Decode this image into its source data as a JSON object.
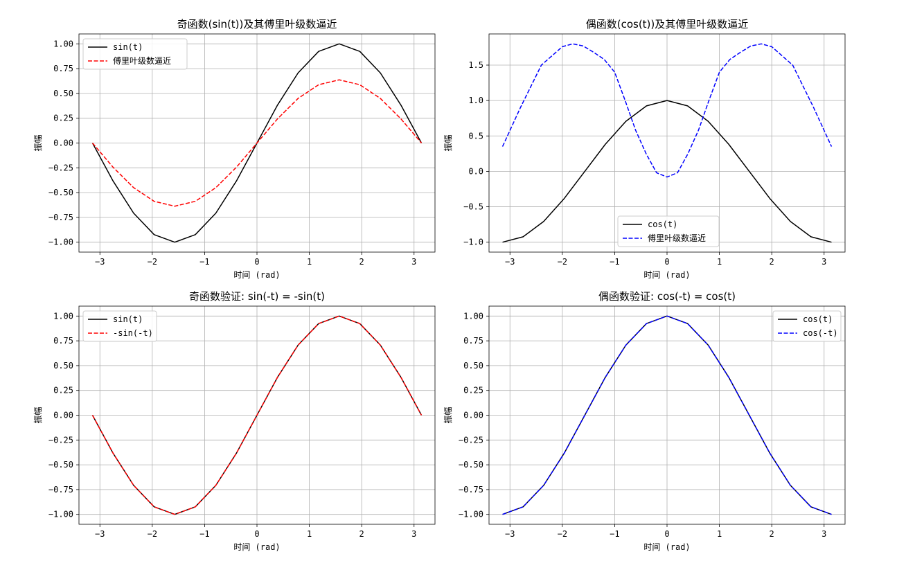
{
  "xlabel": "时间 (rad)",
  "ylabel": "振幅",
  "chart_data": [
    {
      "type": "line",
      "title": "奇函数(sin(t))及其傅里叶级数逼近",
      "xlabel": "时间 (rad)",
      "ylabel": "振幅",
      "xlim": [
        -3.4,
        3.4
      ],
      "ylim": [
        -1.1,
        1.1
      ],
      "xticks": [
        -3,
        -2,
        -1,
        0,
        1,
        2,
        3
      ],
      "yticks": [
        -1.0,
        -0.75,
        -0.5,
        -0.25,
        0.0,
        0.25,
        0.5,
        0.75,
        1.0
      ],
      "ytick_labels": [
        "−1.00",
        "−0.75",
        "−0.50",
        "−0.25",
        "0.00",
        "0.25",
        "0.50",
        "0.75",
        "1.00"
      ],
      "xtick_labels": [
        "−3",
        "−2",
        "−1",
        "0",
        "1",
        "2",
        "3"
      ],
      "grid": true,
      "legend_position": "upper-left",
      "series": [
        {
          "name": "sin(t)",
          "color": "#000000",
          "style": "solid",
          "x": [
            -3.1416,
            -2.7489,
            -2.3562,
            -1.9635,
            -1.5708,
            -1.1781,
            -0.7854,
            -0.3927,
            0,
            0.3927,
            0.7854,
            1.1781,
            1.5708,
            1.9635,
            2.3562,
            2.7489,
            3.1416
          ],
          "y": [
            0,
            -0.383,
            -0.707,
            -0.924,
            -1,
            -0.924,
            -0.707,
            -0.383,
            0,
            0.383,
            0.707,
            0.924,
            1,
            0.924,
            0.707,
            0.383,
            0
          ]
        },
        {
          "name": "傅里叶级数逼近",
          "color": "#ff0000",
          "style": "dashed",
          "x": [
            -3.1416,
            -2.7489,
            -2.3562,
            -1.9635,
            -1.5708,
            -1.1781,
            -0.7854,
            -0.3927,
            0,
            0.3927,
            0.7854,
            1.1781,
            1.5708,
            1.9635,
            2.3562,
            2.7489,
            3.1416
          ],
          "y": [
            0,
            -0.244,
            -0.45,
            -0.588,
            -0.637,
            -0.588,
            -0.45,
            -0.244,
            0,
            0.244,
            0.45,
            0.588,
            0.637,
            0.588,
            0.45,
            0.244,
            0
          ]
        }
      ]
    },
    {
      "type": "line",
      "title": "偶函数(cos(t))及其傅里叶级数逼近",
      "xlabel": "时间 (rad)",
      "ylabel": "振幅",
      "xlim": [
        -3.4,
        3.4
      ],
      "ylim": [
        -1.14,
        1.94
      ],
      "xticks": [
        -3,
        -2,
        -1,
        0,
        1,
        2,
        3
      ],
      "yticks": [
        -1.0,
        -0.5,
        0.0,
        0.5,
        1.0,
        1.5
      ],
      "ytick_labels": [
        "−1.0",
        "−0.5",
        "0.0",
        "0.5",
        "1.0",
        "1.5"
      ],
      "xtick_labels": [
        "−3",
        "−2",
        "−1",
        "0",
        "1",
        "2",
        "3"
      ],
      "grid": true,
      "legend_position": "lower-center",
      "series": [
        {
          "name": "cos(t)",
          "color": "#000000",
          "style": "solid",
          "x": [
            -3.1416,
            -2.7489,
            -2.3562,
            -1.9635,
            -1.5708,
            -1.1781,
            -0.7854,
            -0.3927,
            0,
            0.3927,
            0.7854,
            1.1781,
            1.5708,
            1.9635,
            2.3562,
            2.7489,
            3.1416
          ],
          "y": [
            -1,
            -0.924,
            -0.707,
            -0.383,
            0,
            0.383,
            0.707,
            0.924,
            1,
            0.924,
            0.707,
            0.383,
            0,
            -0.383,
            -0.707,
            -0.924,
            -1
          ]
        },
        {
          "name": "傅里叶级数逼近",
          "color": "#0000ff",
          "style": "dashed",
          "x": [
            -3.1416,
            -2.8,
            -2.4,
            -2.0,
            -1.8,
            -1.6,
            -1.4,
            -1.2,
            -1.0,
            -0.8,
            -0.6,
            -0.4,
            -0.2,
            0,
            0.2,
            0.4,
            0.6,
            0.8,
            1.0,
            1.2,
            1.4,
            1.6,
            1.8,
            2.0,
            2.4,
            2.8,
            3.1416
          ],
          "y": [
            0.35,
            0.9,
            1.5,
            1.76,
            1.8,
            1.77,
            1.68,
            1.58,
            1.4,
            1.0,
            0.58,
            0.25,
            -0.02,
            -0.08,
            -0.02,
            0.25,
            0.58,
            1.0,
            1.4,
            1.58,
            1.68,
            1.77,
            1.8,
            1.76,
            1.5,
            0.9,
            0.35
          ]
        }
      ]
    },
    {
      "type": "line",
      "title": "奇函数验证: sin(-t) = -sin(t)",
      "xlabel": "时间 (rad)",
      "ylabel": "振幅",
      "xlim": [
        -3.4,
        3.4
      ],
      "ylim": [
        -1.1,
        1.1
      ],
      "xticks": [
        -3,
        -2,
        -1,
        0,
        1,
        2,
        3
      ],
      "yticks": [
        -1.0,
        -0.75,
        -0.5,
        -0.25,
        0.0,
        0.25,
        0.5,
        0.75,
        1.0
      ],
      "ytick_labels": [
        "−1.00",
        "−0.75",
        "−0.50",
        "−0.25",
        "0.00",
        "0.25",
        "0.50",
        "0.75",
        "1.00"
      ],
      "xtick_labels": [
        "−3",
        "−2",
        "−1",
        "0",
        "1",
        "2",
        "3"
      ],
      "grid": true,
      "legend_position": "upper-left",
      "series": [
        {
          "name": "sin(t)",
          "color": "#000000",
          "style": "solid",
          "x": [
            -3.1416,
            -2.7489,
            -2.3562,
            -1.9635,
            -1.5708,
            -1.1781,
            -0.7854,
            -0.3927,
            0,
            0.3927,
            0.7854,
            1.1781,
            1.5708,
            1.9635,
            2.3562,
            2.7489,
            3.1416
          ],
          "y": [
            0,
            -0.383,
            -0.707,
            -0.924,
            -1,
            -0.924,
            -0.707,
            -0.383,
            0,
            0.383,
            0.707,
            0.924,
            1,
            0.924,
            0.707,
            0.383,
            0
          ]
        },
        {
          "name": "-sin(-t)",
          "color": "#ff0000",
          "style": "dashed",
          "x": [
            -3.1416,
            -2.7489,
            -2.3562,
            -1.9635,
            -1.5708,
            -1.1781,
            -0.7854,
            -0.3927,
            0,
            0.3927,
            0.7854,
            1.1781,
            1.5708,
            1.9635,
            2.3562,
            2.7489,
            3.1416
          ],
          "y": [
            0,
            -0.383,
            -0.707,
            -0.924,
            -1,
            -0.924,
            -0.707,
            -0.383,
            0,
            0.383,
            0.707,
            0.924,
            1,
            0.924,
            0.707,
            0.383,
            0
          ]
        }
      ]
    },
    {
      "type": "line",
      "title": "偶函数验证: cos(-t) = cos(t)",
      "xlabel": "时间 (rad)",
      "ylabel": "振幅",
      "xlim": [
        -3.4,
        3.4
      ],
      "ylim": [
        -1.1,
        1.1
      ],
      "xticks": [
        -3,
        -2,
        -1,
        0,
        1,
        2,
        3
      ],
      "yticks": [
        -1.0,
        -0.75,
        -0.5,
        -0.25,
        0.0,
        0.25,
        0.5,
        0.75,
        1.0
      ],
      "ytick_labels": [
        "−1.00",
        "−0.75",
        "−0.50",
        "−0.25",
        "0.00",
        "0.25",
        "0.50",
        "0.75",
        "1.00"
      ],
      "xtick_labels": [
        "−3",
        "−2",
        "−1",
        "0",
        "1",
        "2",
        "3"
      ],
      "grid": true,
      "legend_position": "upper-right",
      "series": [
        {
          "name": "cos(t)",
          "color": "#000000",
          "style": "solid",
          "x": [
            -3.1416,
            -2.7489,
            -2.3562,
            -1.9635,
            -1.5708,
            -1.1781,
            -0.7854,
            -0.3927,
            0,
            0.3927,
            0.7854,
            1.1781,
            1.5708,
            1.9635,
            2.3562,
            2.7489,
            3.1416
          ],
          "y": [
            -1,
            -0.924,
            -0.707,
            -0.383,
            0,
            0.383,
            0.707,
            0.924,
            1,
            0.924,
            0.707,
            0.383,
            0,
            -0.383,
            -0.707,
            -0.924,
            -1
          ]
        },
        {
          "name": "cos(-t)",
          "color": "#0000ff",
          "style": "dashed",
          "x": [
            -3.1416,
            -2.7489,
            -2.3562,
            -1.9635,
            -1.5708,
            -1.1781,
            -0.7854,
            -0.3927,
            0,
            0.3927,
            0.7854,
            1.1781,
            1.5708,
            1.9635,
            2.3562,
            2.7489,
            3.1416
          ],
          "y": [
            -1,
            -0.924,
            -0.707,
            -0.383,
            0,
            0.383,
            0.707,
            0.924,
            1,
            0.924,
            0.707,
            0.383,
            0,
            -0.383,
            -0.707,
            -0.924,
            -1
          ]
        }
      ]
    }
  ]
}
